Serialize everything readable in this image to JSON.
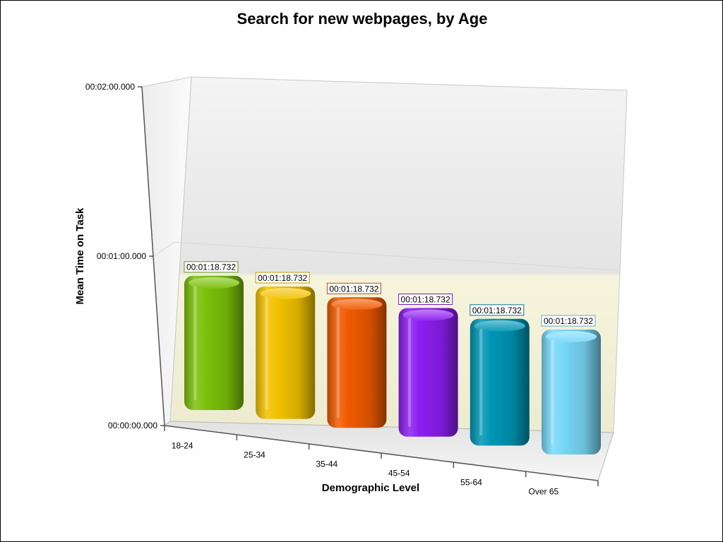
{
  "chart_data": {
    "type": "bar",
    "title": "Search for new webpages, by Age",
    "xlabel": "Demographic Level",
    "ylabel": "Mean Time on Task",
    "categories": [
      "18-24",
      "25-34",
      "35-44",
      "45-54",
      "55-64",
      "Over 65"
    ],
    "values": [
      78.732,
      78.732,
      78.732,
      78.732,
      78.732,
      78.732
    ],
    "data_labels": [
      "00:01:18.732",
      "00:01:18.732",
      "00:01:18.732",
      "00:01:18.732",
      "00:01:18.732",
      "00:01:18.732"
    ],
    "ylim": [
      0,
      120
    ],
    "yticks": [
      {
        "value": 0,
        "label": "00:00:00.000"
      },
      {
        "value": 60,
        "label": "00:01:00.000"
      },
      {
        "value": 120,
        "label": "00:02:00.000"
      }
    ],
    "colors": [
      "#7cc10a",
      "#f2c200",
      "#f05a00",
      "#8c1ef0",
      "#0096b4",
      "#78d8f8"
    ],
    "style": "3d",
    "grid": false,
    "legend": "none"
  }
}
